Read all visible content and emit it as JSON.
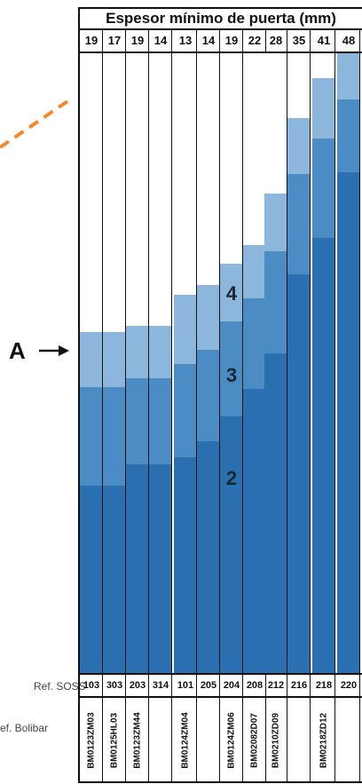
{
  "header": {
    "title": "Espesor mínimo de puerta (mm)",
    "thickness_values": [
      "19",
      "17",
      "19",
      "14",
      "13",
      "14",
      "19",
      "22",
      "28",
      "35",
      "41",
      "48"
    ]
  },
  "labels": {
    "marker": "A",
    "ref_soss": "Ref. SOSS",
    "ref_bolibar": "ef. Bolibar"
  },
  "levels": [
    "4",
    "3",
    "2"
  ],
  "ref_soss_values": [
    "103",
    "303",
    "203",
    "314",
    "101",
    "205",
    "204",
    "208",
    "212",
    "216",
    "218",
    "220"
  ],
  "ref_bolibar_values": [
    "BM0123ZM03",
    "BM0125HL03",
    "BM0123ZM44",
    "",
    "BM0124ZM04",
    "",
    "BM0124ZM06",
    "BM02082D07",
    "BM0210ZD09",
    "",
    "BM0218ZD12",
    ""
  ],
  "colors": {
    "level_2_dark": "#2a6fb0",
    "level_3_mid": "#4c8cc4",
    "level_4_light": "#8db6dc",
    "frame": "#111111",
    "dashed_line": "#f08a2c"
  }
}
